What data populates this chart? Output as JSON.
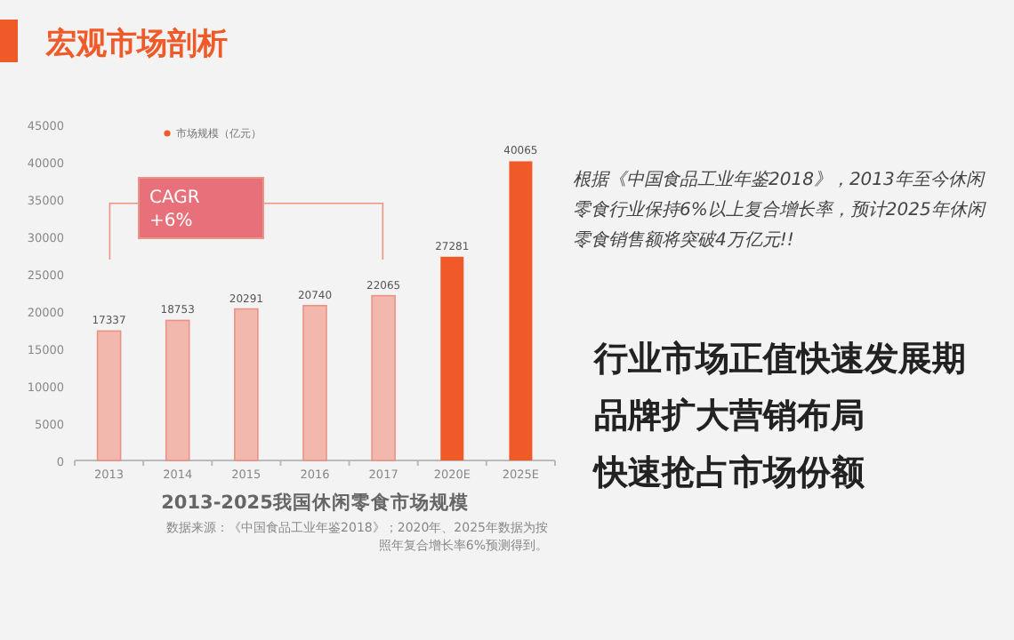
{
  "chart_data": {
    "type": "bar",
    "title": "宏观市场剖析",
    "subtitle": "2013-2025我国休闲零食市场规模",
    "categories": [
      "2013",
      "2014",
      "2015",
      "2016",
      "2017",
      "2020E",
      "2025E"
    ],
    "series": [
      {
        "name": "市场规模（亿元）",
        "color": "#f05a28",
        "values": [
          17337,
          18753,
          20291,
          20740,
          22065,
          27281,
          40065
        ],
        "colors": [
          "#f2b8ad",
          "#f2b8ad",
          "#f2b8ad",
          "#f2b8ad",
          "#f2b8ad",
          "#f05a28",
          "#f05a28"
        ]
      }
    ],
    "ylim": [
      0,
      45000
    ],
    "yticks": [
      0,
      5000,
      10000,
      15000,
      20000,
      25000,
      30000,
      35000,
      40000,
      45000
    ],
    "data_labels": true,
    "legend": "top",
    "grid": false,
    "annotations": [
      "CAGR +6%",
      "数据来源：《中国食品工业年鉴2018》；2020年、2025年数据为按照年复合增长率6%预测得到。",
      "根据《中国食品工业年鉴2018》，2013年至今休闲零食行业保持6%以上复合增长率，预计2025年休闲零食销售额将突破4万亿元!!",
      "行业市场正值快速发展期",
      "品牌扩大营销布局",
      "快速抢占市场份额"
    ]
  }
}
